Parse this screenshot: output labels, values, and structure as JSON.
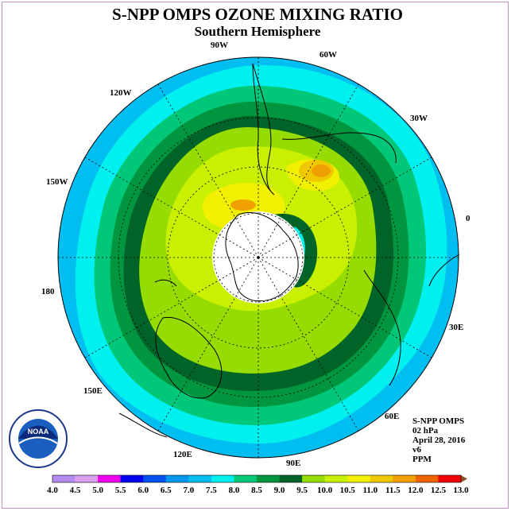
{
  "title": "S-NPP OMPS OZONE MIXING RATIO",
  "subtitle": "Southern Hemisphere",
  "longitude_labels": [
    "0",
    "30E",
    "60E",
    "90E",
    "120E",
    "150E",
    "180",
    "150W",
    "120W",
    "90W",
    "60W",
    "30W"
  ],
  "info": {
    "instrument": "S-NPP OMPS",
    "level": "02 hPa",
    "date": "April 28, 2016",
    "version": "v6",
    "units": "PPM"
  },
  "logo": {
    "text": "NOAA",
    "ring_text": "NATIONAL OCEANIC AND ATMOSPHERIC ADMINISTRATION · U.S. DEPARTMENT OF COMMERCE"
  },
  "colorbar": {
    "ticks": [
      "4.0",
      "4.5",
      "5.0",
      "5.5",
      "6.0",
      "6.5",
      "7.0",
      "7.5",
      "8.0",
      "8.5",
      "9.0",
      "9.5",
      "10.0",
      "10.5",
      "11.0",
      "11.5",
      "12.0",
      "12.5",
      "13.0"
    ],
    "colors": [
      "#b48cf0",
      "#dca0f0",
      "#f000f0",
      "#0000f0",
      "#0050f0",
      "#0096f0",
      "#00bef0",
      "#00f0f0",
      "#00c878",
      "#009640",
      "#006428",
      "#96dc00",
      "#c8f000",
      "#f0f000",
      "#f0c800",
      "#f0a000",
      "#f06400",
      "#f00000",
      "#8c5028"
    ]
  },
  "chart_data": {
    "type": "polar-stereographic-map",
    "projection": "south polar stereographic",
    "variable": "ozone mixing ratio",
    "level": "02 hPa",
    "units": "PPM",
    "date": "April 28, 2016",
    "contour_levels": [
      4.0,
      4.5,
      5.0,
      5.5,
      6.0,
      6.5,
      7.0,
      7.5,
      8.0,
      8.5,
      9.0,
      9.5,
      10.0,
      10.5,
      11.0,
      11.5,
      12.0,
      12.5,
      13.0
    ],
    "field_description": [
      {
        "region": "outer ring near equator",
        "range": [
          7.0,
          7.5
        ]
      },
      {
        "region": "subtropics",
        "range": [
          8.0,
          9.0
        ]
      },
      {
        "region": "mid latitudes",
        "range": [
          9.0,
          10.0
        ]
      },
      {
        "region": "maximum near 45S 40W",
        "range": [
          11.5,
          12.0
        ]
      },
      {
        "region": "polar night region",
        "value": "no data"
      }
    ]
  }
}
